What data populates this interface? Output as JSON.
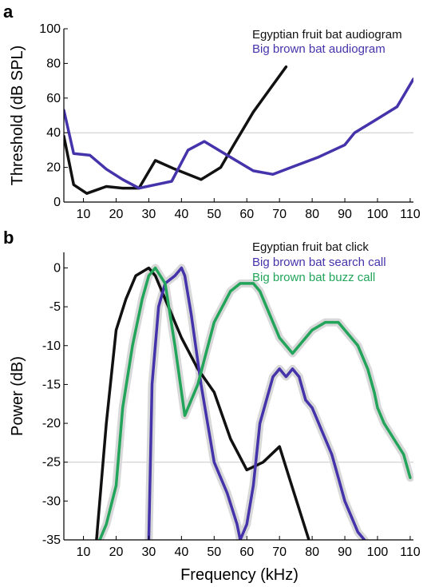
{
  "figure": {
    "shared_xlabel": "Frequency (kHz)"
  },
  "colors": {
    "egyptian": "#111111",
    "bigbrown": "#4433aa",
    "buzz": "#22a55a",
    "band": "#d8d8d8",
    "refline": "#c8c8c8"
  },
  "chart_data": [
    {
      "panel": "a",
      "type": "line",
      "xlabel": "",
      "ylabel": "Threshold (dB SPL)",
      "xlim": [
        4,
        111
      ],
      "ylim": [
        0,
        100
      ],
      "xticks": [
        10,
        20,
        30,
        40,
        50,
        60,
        70,
        80,
        90,
        100,
        110
      ],
      "yticks": [
        0,
        20,
        40,
        60,
        80,
        100
      ],
      "reference_line_y": 40,
      "legend": "top-right",
      "series": [
        {
          "name": "Egyptian fruit bat audiogram",
          "color_key": "egyptian",
          "x": [
            4,
            7,
            11,
            17,
            22,
            27,
            32,
            38,
            46,
            52,
            56,
            62,
            67,
            72
          ],
          "y": [
            38,
            10,
            5,
            9,
            8,
            8,
            24,
            19,
            13,
            20,
            33,
            52,
            65,
            78
          ]
        },
        {
          "name": "Big brown bat audiogram",
          "color_key": "bigbrown",
          "x": [
            4,
            7,
            12,
            17,
            22,
            27,
            32,
            37,
            42,
            47,
            54,
            62,
            68,
            75,
            82,
            90,
            93,
            100,
            106,
            111
          ],
          "y": [
            53,
            28,
            27,
            19,
            13,
            8,
            10,
            12,
            30,
            35,
            27,
            18,
            16,
            21,
            26,
            33,
            40,
            48,
            55,
            71
          ]
        }
      ]
    },
    {
      "panel": "b",
      "type": "line",
      "xlabel": "Frequency (kHz)",
      "ylabel": "Power (dB)",
      "xlim": [
        4,
        111
      ],
      "ylim": [
        -35,
        2
      ],
      "xticks": [
        10,
        20,
        30,
        40,
        50,
        60,
        70,
        80,
        90,
        100,
        110
      ],
      "yticks": [
        0,
        -5,
        -10,
        -15,
        -20,
        -25,
        -30,
        -35
      ],
      "reference_line_y": -25,
      "legend": "top-right",
      "series": [
        {
          "name": "Egyptian fruit bat click",
          "color_key": "egyptian",
          "x": [
            14,
            17,
            20,
            23,
            26,
            30,
            32,
            36,
            40,
            45,
            50,
            55,
            60,
            65,
            70,
            73,
            76,
            79
          ],
          "y": [
            -35,
            -20,
            -8,
            -4,
            -1,
            0,
            -1,
            -5,
            -9,
            -13,
            -16,
            -22,
            -26,
            -25,
            -23,
            -27,
            -31,
            -35
          ]
        },
        {
          "name": "Big brown bat search call",
          "color_key": "bigbrown",
          "x": [
            30,
            31,
            33,
            35,
            38,
            40,
            41,
            43,
            46,
            50,
            54,
            57,
            58,
            60,
            62,
            64,
            66,
            68,
            70,
            72,
            74,
            76,
            78,
            80,
            83,
            86,
            88,
            90,
            92,
            94,
            96
          ],
          "y": [
            -35,
            -15,
            -5,
            -2,
            -1,
            0,
            -1,
            -6,
            -15,
            -25,
            -29,
            -33,
            -35,
            -33,
            -28,
            -20,
            -17,
            -14,
            -13,
            -14,
            -13,
            -14,
            -17,
            -18,
            -21,
            -24,
            -27,
            -30,
            -32,
            -34,
            -35
          ]
        },
        {
          "name": "Big brown bat buzz call",
          "color_key": "buzz",
          "x": [
            15,
            17,
            20,
            22,
            25,
            28,
            30,
            32,
            35,
            38,
            41,
            45,
            50,
            55,
            58,
            60,
            62,
            64,
            66,
            68,
            70,
            72,
            74,
            76,
            78,
            80,
            84,
            88,
            90,
            94,
            97,
            99,
            100,
            102,
            105,
            108,
            110
          ],
          "y": [
            -35,
            -33,
            -28,
            -18,
            -10,
            -4,
            -1,
            0,
            -2,
            -10,
            -19,
            -15,
            -7,
            -3,
            -2,
            -2,
            -2,
            -3,
            -5,
            -7,
            -9,
            -10,
            -11,
            -10,
            -9,
            -8,
            -7,
            -7,
            -8,
            -10,
            -13,
            -16,
            -18,
            -20,
            -22,
            -24,
            -27
          ]
        }
      ]
    }
  ]
}
